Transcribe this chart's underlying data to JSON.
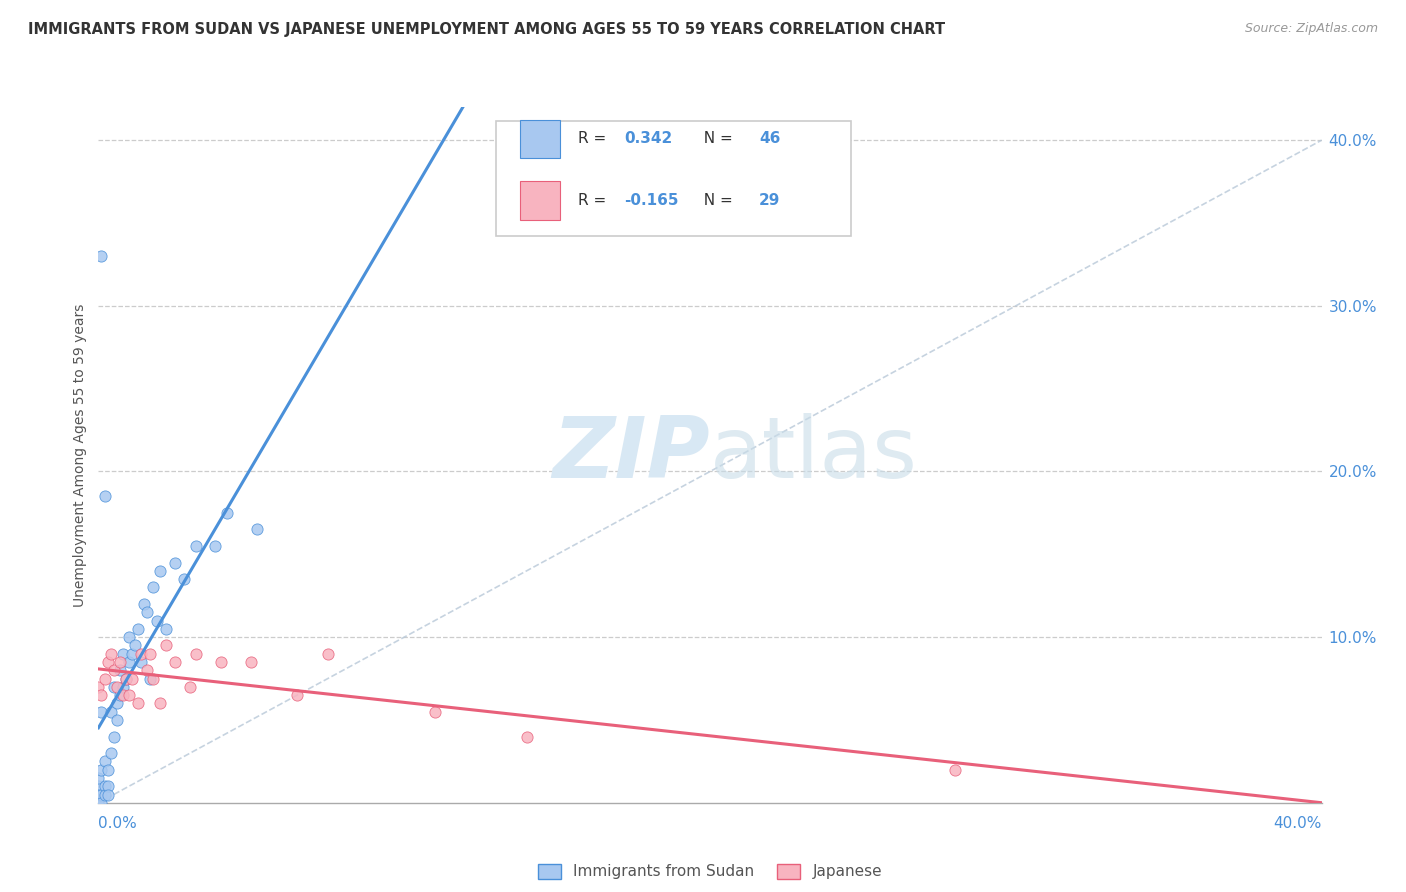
{
  "title": "IMMIGRANTS FROM SUDAN VS JAPANESE UNEMPLOYMENT AMONG AGES 55 TO 59 YEARS CORRELATION CHART",
  "source": "Source: ZipAtlas.com",
  "ylabel": "Unemployment Among Ages 55 to 59 years",
  "legend_label1": "Immigrants from Sudan",
  "legend_label2": "Japanese",
  "r1": 0.342,
  "n1": 46,
  "r2": -0.165,
  "n2": 29,
  "xlim": [
    0.0,
    0.4
  ],
  "ylim": [
    0.0,
    0.42
  ],
  "color1": "#a8c8f0",
  "color2": "#f8b4c0",
  "line_color1": "#4a90d9",
  "line_color2": "#e8607a",
  "trendline_color": "#b8c8d8",
  "watermark_color": "#d8e8f4",
  "sudan_points": [
    [
      0.0,
      0.01
    ],
    [
      0.0,
      0.005
    ],
    [
      0.0,
      0.0
    ],
    [
      0.0,
      0.015
    ],
    [
      0.001,
      0.02
    ],
    [
      0.001,
      0.005
    ],
    [
      0.001,
      0.0
    ],
    [
      0.001,
      0.055
    ],
    [
      0.002,
      0.01
    ],
    [
      0.002,
      0.025
    ],
    [
      0.002,
      0.005
    ],
    [
      0.003,
      0.01
    ],
    [
      0.003,
      0.02
    ],
    [
      0.003,
      0.005
    ],
    [
      0.004,
      0.03
    ],
    [
      0.004,
      0.055
    ],
    [
      0.005,
      0.04
    ],
    [
      0.005,
      0.07
    ],
    [
      0.006,
      0.06
    ],
    [
      0.006,
      0.05
    ],
    [
      0.007,
      0.08
    ],
    [
      0.007,
      0.065
    ],
    [
      0.008,
      0.09
    ],
    [
      0.008,
      0.07
    ],
    [
      0.009,
      0.075
    ],
    [
      0.01,
      0.1
    ],
    [
      0.01,
      0.085
    ],
    [
      0.011,
      0.09
    ],
    [
      0.012,
      0.095
    ],
    [
      0.013,
      0.105
    ],
    [
      0.014,
      0.085
    ],
    [
      0.015,
      0.12
    ],
    [
      0.016,
      0.115
    ],
    [
      0.017,
      0.075
    ],
    [
      0.018,
      0.13
    ],
    [
      0.019,
      0.11
    ],
    [
      0.02,
      0.14
    ],
    [
      0.022,
      0.105
    ],
    [
      0.025,
      0.145
    ],
    [
      0.028,
      0.135
    ],
    [
      0.032,
      0.155
    ],
    [
      0.038,
      0.155
    ],
    [
      0.042,
      0.175
    ],
    [
      0.052,
      0.165
    ],
    [
      0.001,
      0.33
    ],
    [
      0.002,
      0.185
    ]
  ],
  "japanese_points": [
    [
      0.0,
      0.07
    ],
    [
      0.001,
      0.065
    ],
    [
      0.002,
      0.075
    ],
    [
      0.003,
      0.085
    ],
    [
      0.004,
      0.09
    ],
    [
      0.005,
      0.08
    ],
    [
      0.006,
      0.07
    ],
    [
      0.007,
      0.085
    ],
    [
      0.008,
      0.065
    ],
    [
      0.009,
      0.075
    ],
    [
      0.01,
      0.065
    ],
    [
      0.011,
      0.075
    ],
    [
      0.013,
      0.06
    ],
    [
      0.014,
      0.09
    ],
    [
      0.016,
      0.08
    ],
    [
      0.017,
      0.09
    ],
    [
      0.018,
      0.075
    ],
    [
      0.02,
      0.06
    ],
    [
      0.022,
      0.095
    ],
    [
      0.025,
      0.085
    ],
    [
      0.03,
      0.07
    ],
    [
      0.032,
      0.09
    ],
    [
      0.04,
      0.085
    ],
    [
      0.05,
      0.085
    ],
    [
      0.065,
      0.065
    ],
    [
      0.075,
      0.09
    ],
    [
      0.11,
      0.055
    ],
    [
      0.14,
      0.04
    ],
    [
      0.28,
      0.02
    ]
  ]
}
